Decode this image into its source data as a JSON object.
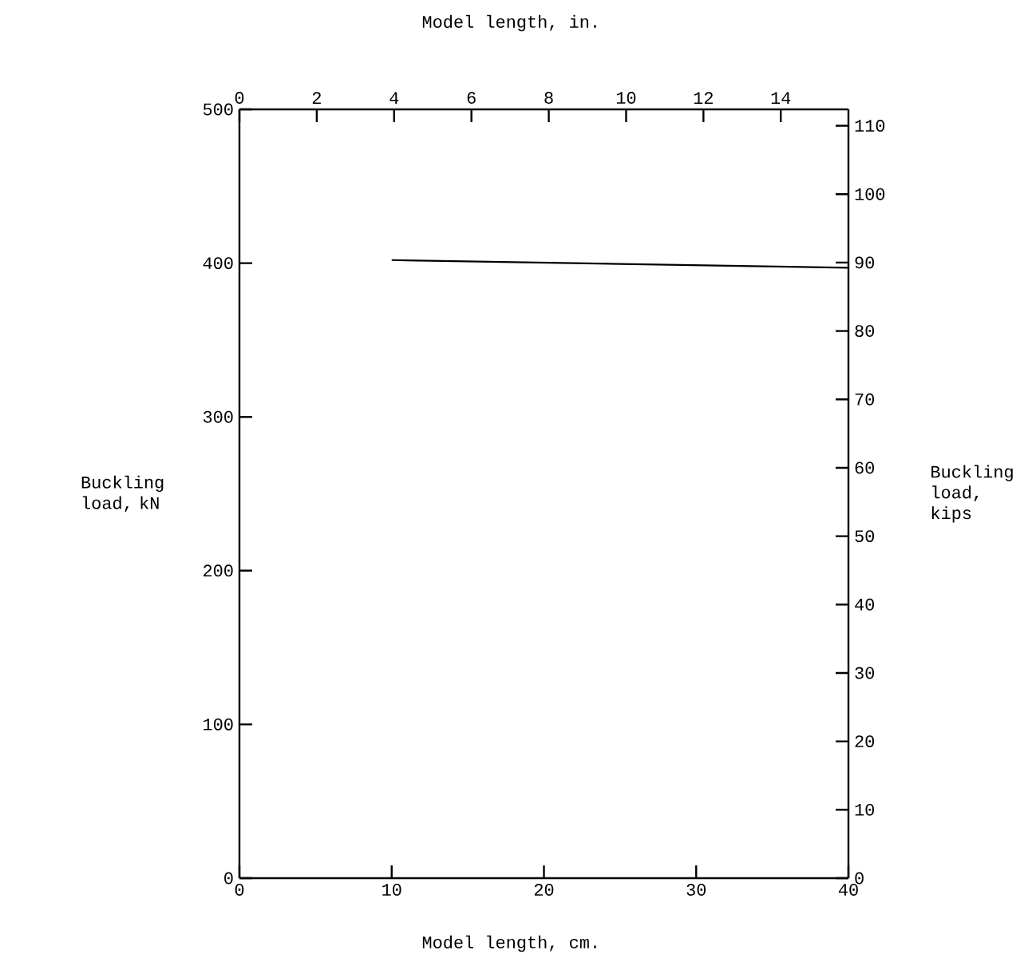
{
  "chart_data": {
    "type": "line",
    "xlabel": "Model length, cm.",
    "x2label": "Model length, in.",
    "ylabel": "Buckling load, kN",
    "y2label": "Buckling load, kips",
    "x": [
      10,
      40
    ],
    "series": [
      {
        "color": "#000000",
        "values": [
          402,
          397
        ]
      }
    ],
    "xlim": [
      0,
      40
    ],
    "xticks": [
      0,
      10,
      20,
      30,
      40
    ],
    "ylim": [
      0,
      500
    ],
    "yticks": [
      0,
      100,
      200,
      300,
      400,
      500
    ],
    "x2lim": [
      0,
      15.75
    ],
    "x2ticks": [
      0,
      2,
      4,
      6,
      8,
      10,
      12,
      14
    ],
    "y2lim": [
      0,
      112.4
    ],
    "y2ticks": [
      0,
      10,
      20,
      30,
      40,
      50,
      60,
      70,
      80,
      90,
      100,
      110
    ]
  }
}
